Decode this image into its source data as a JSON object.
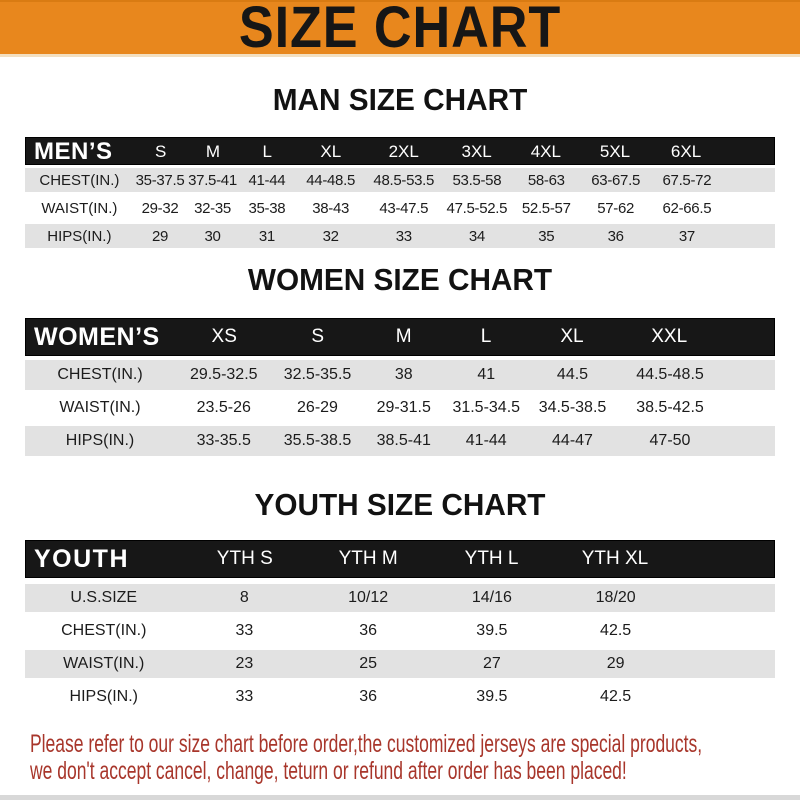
{
  "banner": {
    "title": "SIZE CHART"
  },
  "sections": {
    "men": {
      "title": "MAN SIZE CHART",
      "header_label": "MEN’S",
      "sizes": [
        "S",
        "M",
        "L",
        "XL",
        "2XL",
        "3XL",
        "4XL",
        "5XL",
        "6XL"
      ],
      "rows": [
        {
          "label": "CHEST(IN.)",
          "values": [
            "35-37.5",
            "37.5-41",
            "41-44",
            "44-48.5",
            "48.5-53.5",
            "53.5-58",
            "58-63",
            "63-67.5",
            "67.5-72"
          ]
        },
        {
          "label": "WAIST(IN.)",
          "values": [
            "29-32",
            "32-35",
            "35-38",
            "38-43",
            "43-47.5",
            "47.5-52.5",
            "52.5-57",
            "57-62",
            "62-66.5"
          ]
        },
        {
          "label": "HIPS(IN.)",
          "values": [
            "29",
            "30",
            "31",
            "32",
            "33",
            "34",
            "35",
            "36",
            "37"
          ]
        }
      ]
    },
    "women": {
      "title": "WOMEN SIZE CHART",
      "header_label": "WOMEN’S",
      "sizes": [
        "XS",
        "S",
        "M",
        "L",
        "XL",
        "XXL"
      ],
      "rows": [
        {
          "label": "CHEST(IN.)",
          "values": [
            "29.5-32.5",
            "32.5-35.5",
            "38",
            "41",
            "44.5",
            "44.5-48.5"
          ]
        },
        {
          "label": "WAIST(IN.)",
          "values": [
            "23.5-26",
            "26-29",
            "29-31.5",
            "31.5-34.5",
            "34.5-38.5",
            "38.5-42.5"
          ]
        },
        {
          "label": "HIPS(IN.)",
          "values": [
            "33-35.5",
            "35.5-38.5",
            "38.5-41",
            "41-44",
            "44-47",
            "47-50"
          ]
        }
      ]
    },
    "youth": {
      "title": "YOUTH SIZE CHART",
      "header_label": "YOUTH",
      "sizes": [
        "YTH S",
        "YTH M",
        "YTH L",
        "YTH XL"
      ],
      "rows": [
        {
          "label": "U.S.SIZE",
          "values": [
            "8",
            "10/12",
            "14/16",
            "18/20"
          ]
        },
        {
          "label": "CHEST(IN.)",
          "values": [
            "33",
            "36",
            "39.5",
            "42.5"
          ]
        },
        {
          "label": "WAIST(IN.)",
          "values": [
            "23",
            "25",
            "27",
            "29"
          ]
        },
        {
          "label": "HIPS(IN.)",
          "values": [
            "33",
            "36",
            "39.5",
            "42.5"
          ]
        }
      ]
    }
  },
  "footer": {
    "line1": "Please refer to our size chart before order,the customized jerseys are special products,",
    "line2": "we don't accept cancel, change, teturn or refund after order has been placed!"
  },
  "colors": {
    "banner_orange": "#E8871D",
    "header_black": "#171717",
    "row_gray": "#E2E2E2",
    "note_red": "#A8362B"
  }
}
